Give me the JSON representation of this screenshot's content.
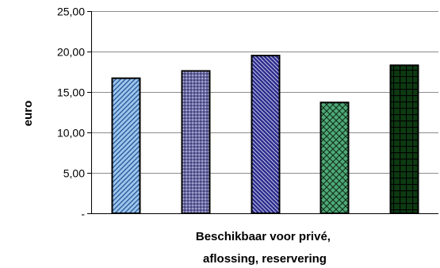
{
  "chart_data": {
    "type": "bar",
    "title": "",
    "xlabel": [
      "Beschikbaar voor privé,",
      "aflossing, reservering"
    ],
    "ylabel": "euro",
    "ylim": [
      0,
      25
    ],
    "yticks": [
      0,
      5,
      10,
      15,
      20,
      25
    ],
    "ytick_labels": [
      "-",
      "5,00",
      "10,00",
      "15,00",
      "20,00",
      "25,00"
    ],
    "grid": true,
    "legend": "none",
    "series": [
      {
        "values": [
          16.7
        ],
        "color": "#9ec6ec",
        "pattern": "diagonal-stripes-light"
      },
      {
        "values": [
          17.6
        ],
        "color": "#6b6ba8",
        "pattern": "dots"
      },
      {
        "values": [
          19.5
        ],
        "color": "#2c2c8c",
        "pattern": "diagonal-stripes-dark"
      },
      {
        "values": [
          13.7
        ],
        "color": "#4fa877",
        "pattern": "crosshatch-diamond"
      },
      {
        "values": [
          18.3
        ],
        "color": "#0e3a12",
        "pattern": "grid"
      }
    ]
  }
}
